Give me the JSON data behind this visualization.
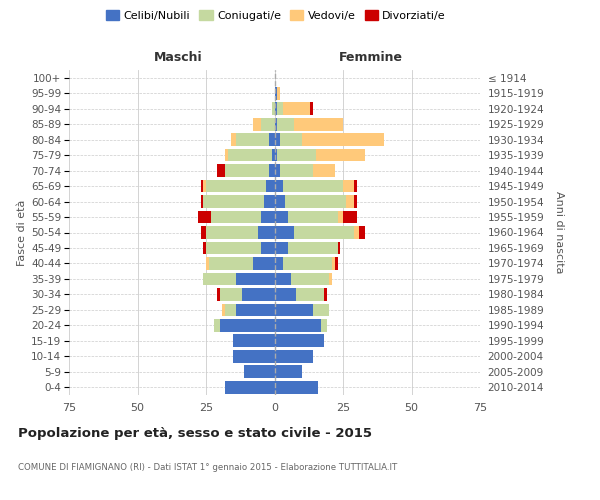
{
  "age_groups_bottom_to_top": [
    "0-4",
    "5-9",
    "10-14",
    "15-19",
    "20-24",
    "25-29",
    "30-34",
    "35-39",
    "40-44",
    "45-49",
    "50-54",
    "55-59",
    "60-64",
    "65-69",
    "70-74",
    "75-79",
    "80-84",
    "85-89",
    "90-94",
    "95-99",
    "100+"
  ],
  "birth_years_bottom_to_top": [
    "2010-2014",
    "2005-2009",
    "2000-2004",
    "1995-1999",
    "1990-1994",
    "1985-1989",
    "1980-1984",
    "1975-1979",
    "1970-1974",
    "1965-1969",
    "1960-1964",
    "1955-1959",
    "1950-1954",
    "1945-1949",
    "1940-1944",
    "1935-1939",
    "1930-1934",
    "1925-1929",
    "1920-1924",
    "1915-1919",
    "≤ 1914"
  ],
  "male": {
    "celibi": [
      18,
      11,
      15,
      15,
      20,
      14,
      12,
      14,
      8,
      5,
      6,
      5,
      4,
      3,
      2,
      1,
      2,
      0,
      0,
      0,
      0
    ],
    "coniugati": [
      0,
      0,
      0,
      0,
      2,
      4,
      8,
      12,
      16,
      20,
      19,
      18,
      22,
      22,
      16,
      16,
      12,
      5,
      1,
      0,
      0
    ],
    "vedovi": [
      0,
      0,
      0,
      0,
      0,
      1,
      0,
      0,
      1,
      0,
      0,
      0,
      0,
      1,
      0,
      1,
      2,
      3,
      0,
      0,
      0
    ],
    "divorziati": [
      0,
      0,
      0,
      0,
      0,
      0,
      1,
      0,
      0,
      1,
      2,
      5,
      1,
      1,
      3,
      0,
      0,
      0,
      0,
      0,
      0
    ]
  },
  "female": {
    "nubili": [
      16,
      10,
      14,
      18,
      17,
      14,
      8,
      6,
      3,
      5,
      7,
      5,
      4,
      3,
      2,
      1,
      2,
      1,
      1,
      1,
      0
    ],
    "coniugate": [
      0,
      0,
      0,
      0,
      2,
      6,
      10,
      14,
      18,
      18,
      22,
      18,
      22,
      22,
      12,
      14,
      8,
      6,
      2,
      0,
      0
    ],
    "vedove": [
      0,
      0,
      0,
      0,
      0,
      0,
      0,
      1,
      1,
      0,
      2,
      2,
      3,
      4,
      8,
      18,
      30,
      18,
      10,
      1,
      0
    ],
    "divorziate": [
      0,
      0,
      0,
      0,
      0,
      0,
      1,
      0,
      1,
      1,
      2,
      5,
      1,
      1,
      0,
      0,
      0,
      0,
      1,
      0,
      0
    ]
  },
  "colors": {
    "celibi": "#4472c4",
    "coniugati": "#c5d9a0",
    "vedovi": "#ffc97a",
    "divorziati": "#cc0000"
  },
  "title": "Popolazione per età, sesso e stato civile - 2015",
  "subtitle": "COMUNE DI FIAMIGNANO (RI) - Dati ISTAT 1° gennaio 2015 - Elaborazione TUTTITALIA.IT",
  "xlim": 75,
  "background_color": "#ffffff",
  "grid_color": "#cccccc"
}
